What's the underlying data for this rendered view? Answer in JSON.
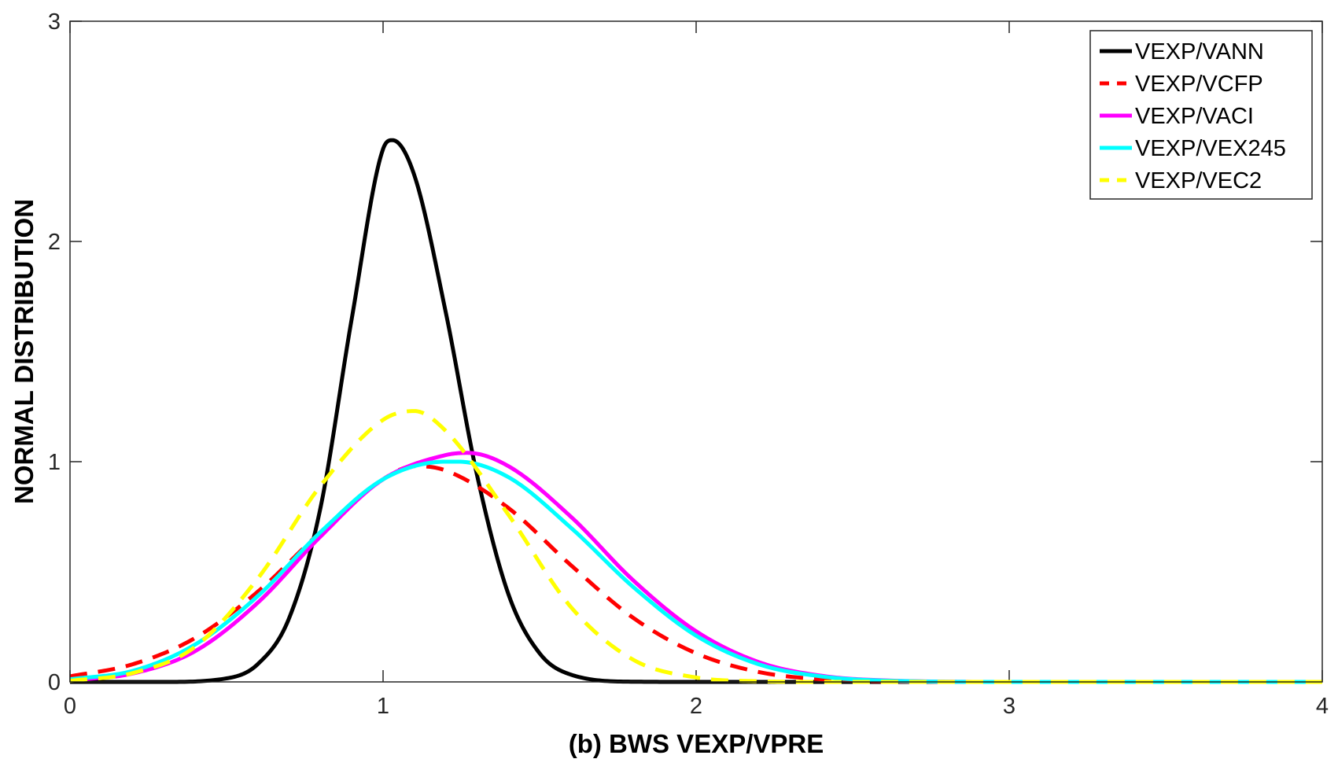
{
  "chart_data": {
    "type": "line",
    "title": "",
    "xlabel": "(b) BWS VEXP/VPRE",
    "ylabel": "NORMAL DISTRIBUTION",
    "xlim": [
      0,
      4
    ],
    "ylim": [
      0,
      3
    ],
    "xticks": [
      0,
      1,
      2,
      3,
      4
    ],
    "yticks": [
      0,
      1,
      2,
      3
    ],
    "xtick_labels": [
      "0",
      "1",
      "2",
      "3",
      "4"
    ],
    "ytick_labels": [
      "0",
      "1",
      "2",
      "3"
    ],
    "grid": false,
    "legend_position": "top-right",
    "series": [
      {
        "name": "VEXP/VANN",
        "color": "#000000",
        "style": "solid",
        "x": [
          0,
          0.3,
          0.5,
          0.6,
          0.7,
          0.8,
          0.9,
          1.0,
          1.03,
          1.1,
          1.2,
          1.3,
          1.4,
          1.5,
          1.6,
          1.8,
          2.0,
          2.5,
          3.0,
          4.0
        ],
        "values": [
          0.0,
          0.0,
          0.016,
          0.081,
          0.29,
          0.79,
          1.65,
          2.42,
          2.46,
          2.3,
          1.68,
          0.94,
          0.4,
          0.13,
          0.033,
          0.001,
          0.0,
          0.0,
          0.0,
          0.0
        ]
      },
      {
        "name": "VEXP/VCFP",
        "color": "#ff0000",
        "style": "dashed",
        "x": [
          0,
          0.2,
          0.4,
          0.6,
          0.8,
          1.0,
          1.1,
          1.2,
          1.4,
          1.6,
          1.8,
          2.0,
          2.2,
          2.4,
          2.6,
          3.0,
          4.0
        ],
        "values": [
          0.025,
          0.08,
          0.2,
          0.41,
          0.68,
          0.92,
          0.98,
          0.96,
          0.79,
          0.53,
          0.29,
          0.13,
          0.045,
          0.012,
          0.003,
          0.0,
          0.0
        ]
      },
      {
        "name": "VEXP/VACI",
        "color": "#ff00ff",
        "style": "solid",
        "x": [
          0,
          0.2,
          0.4,
          0.6,
          0.8,
          1.0,
          1.2,
          1.27,
          1.4,
          1.6,
          1.8,
          2.0,
          2.2,
          2.4,
          2.6,
          3.0,
          4.0
        ],
        "values": [
          0.007,
          0.038,
          0.14,
          0.36,
          0.66,
          0.92,
          1.03,
          1.04,
          0.98,
          0.75,
          0.46,
          0.23,
          0.09,
          0.028,
          0.007,
          0.0,
          0.0
        ]
      },
      {
        "name": "VEXP/VEX245",
        "color": "#00ffff",
        "style": "solid",
        "x": [
          0,
          0.2,
          0.4,
          0.6,
          0.8,
          1.0,
          1.2,
          1.24,
          1.4,
          1.6,
          1.8,
          2.0,
          2.2,
          2.4,
          2.6,
          3.0,
          4.0
        ],
        "values": [
          0.012,
          0.05,
          0.17,
          0.39,
          0.68,
          0.92,
          1.0,
          1.0,
          0.93,
          0.7,
          0.43,
          0.21,
          0.08,
          0.025,
          0.006,
          0.0,
          0.0
        ]
      },
      {
        "name": "VEXP/VEC2",
        "color": "#ffff00",
        "style": "dashed",
        "x": [
          0,
          0.2,
          0.4,
          0.6,
          0.8,
          1.0,
          1.1,
          1.2,
          1.4,
          1.6,
          1.8,
          2.0,
          2.2,
          2.4,
          3.0,
          4.0
        ],
        "values": [
          0.005,
          0.04,
          0.16,
          0.47,
          0.89,
          1.19,
          1.23,
          1.14,
          0.76,
          0.34,
          0.1,
          0.02,
          0.003,
          0.0,
          0.0,
          0.0
        ]
      }
    ]
  }
}
